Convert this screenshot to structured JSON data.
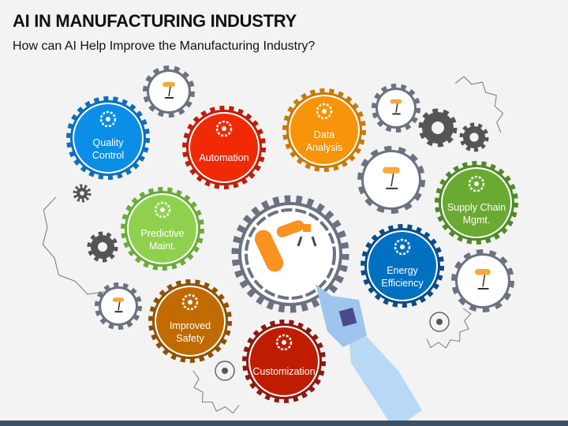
{
  "title": "AI IN MANUFACTURING INDUSTRY",
  "subtitle": "How can AI Help Improve the Manufacturing Industry?",
  "items": [
    {
      "label": "Quality\nControl",
      "color": "#0a8ee8",
      "ring": "#0b6fc0",
      "icon": "gear-badge-icon"
    },
    {
      "label": "Automation",
      "color": "#f02a05",
      "ring": "#c21d0a",
      "icon": "automation-icon"
    },
    {
      "label": "Data\nAnalysis",
      "color": "#f7940a",
      "ring": "#c97a0a",
      "icon": "chart-monitor-icon"
    },
    {
      "label": "Predictive\nMaint.",
      "color": "#8fd14f",
      "ring": "#6aab3a",
      "icon": "maintenance-icon"
    },
    {
      "label": "Improved\nSafety",
      "color": "#c06a00",
      "ring": "#8f5200",
      "icon": "shield-growth-icon"
    },
    {
      "label": "Customization",
      "color": "#c01d00",
      "ring": "#8c1a10",
      "icon": "gear-wrench-icon"
    },
    {
      "label": "Energy\nEfficiency",
      "color": "#0070c0",
      "ring": "#0a4e88",
      "icon": "hands-bulb-icon"
    },
    {
      "label": "Supply Chain\nMgmt.",
      "color": "#6aaa33",
      "ring": "#4f8a28",
      "icon": "supply-cycle-icon"
    }
  ]
}
